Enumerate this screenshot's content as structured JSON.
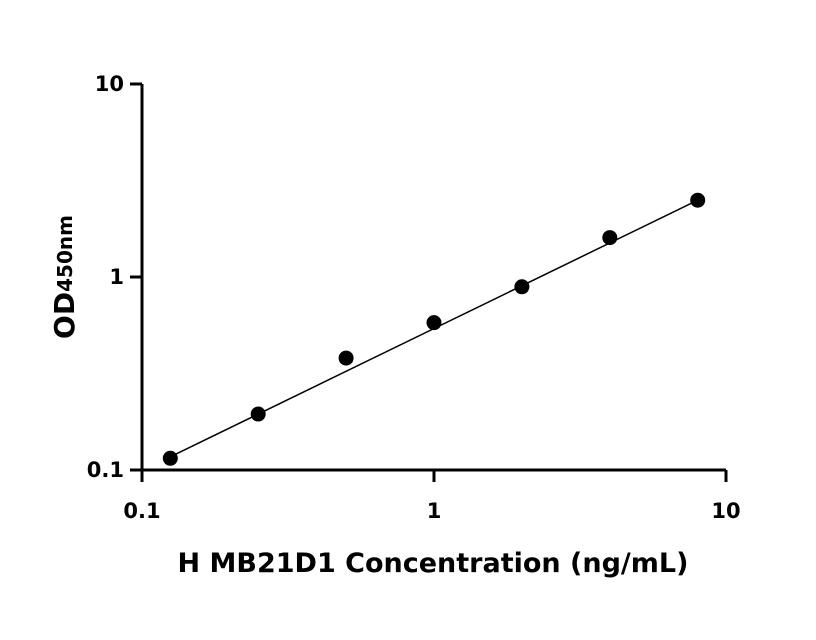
{
  "chart_data": {
    "type": "scatter",
    "title": "",
    "xlabel": "H MB21D1 Concentration (ng/mL)",
    "ylabel_main": "OD",
    "ylabel_sub": "450nm",
    "x_scale": "log",
    "y_scale": "log",
    "xlim": [
      0.1,
      10
    ],
    "ylim": [
      0.1,
      10
    ],
    "x_ticks": [
      "0.1",
      "1",
      "10"
    ],
    "y_ticks": [
      "0.1",
      "1",
      "10"
    ],
    "grid": false,
    "legend": "none",
    "series": [
      {
        "x": [
          0.125,
          0.25,
          0.5,
          1,
          2,
          4,
          8
        ],
        "y": [
          0.115,
          0.195,
          0.38,
          0.58,
          0.89,
          1.6,
          2.5
        ]
      }
    ],
    "fit_line": {
      "x": [
        0.125,
        8
      ],
      "y": [
        0.117,
        2.5
      ]
    }
  }
}
